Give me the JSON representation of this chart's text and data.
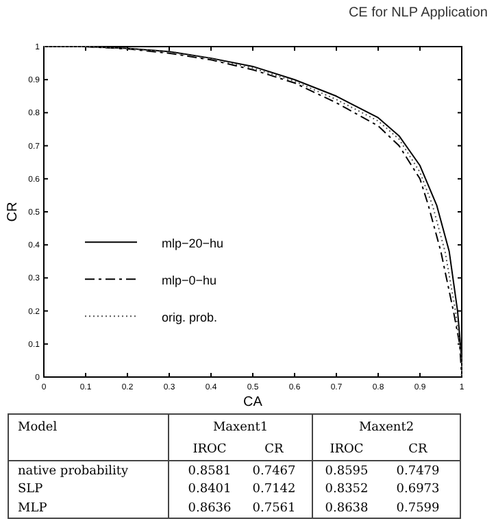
{
  "chart_data": [
    {
      "type": "line",
      "annotations": [
        "CE for NLP Application"
      ],
      "xlabel": "CA",
      "ylabel": "CR",
      "xlim": [
        0,
        1
      ],
      "ylim": [
        0,
        1
      ],
      "xticks": [
        0,
        0.1,
        0.2,
        0.3,
        0.4,
        0.5,
        0.6,
        0.7,
        0.8,
        0.9,
        1
      ],
      "yticks": [
        0,
        0.1,
        0.2,
        0.3,
        0.4,
        0.5,
        0.6,
        0.7,
        0.8,
        0.9,
        1
      ],
      "grid": false,
      "legend": "bottom left",
      "series": [
        {
          "name": "mlp−20−hu",
          "color": "#000000",
          "line_style": "solid",
          "x": [
            0,
            0.1,
            0.2,
            0.3,
            0.4,
            0.5,
            0.6,
            0.7,
            0.8,
            0.85,
            0.9,
            0.94,
            0.97,
            0.99,
            1,
            1
          ],
          "values": [
            1,
            1,
            0.995,
            0.985,
            0.965,
            0.94,
            0.9,
            0.85,
            0.785,
            0.73,
            0.64,
            0.52,
            0.38,
            0.2,
            0.05,
            0
          ]
        },
        {
          "name": "mlp−0−hu",
          "color": "#000000",
          "line_style": "dashed",
          "x": [
            0,
            0.1,
            0.2,
            0.3,
            0.4,
            0.5,
            0.6,
            0.7,
            0.8,
            0.85,
            0.9,
            0.92,
            0.95,
            0.98,
            0.995,
            1
          ],
          "values": [
            1,
            1,
            0.993,
            0.98,
            0.96,
            0.93,
            0.89,
            0.83,
            0.76,
            0.7,
            0.6,
            0.52,
            0.38,
            0.2,
            0.1,
            0
          ]
        },
        {
          "name": "orig. prob.",
          "color": "#555555",
          "line_style": "dotted",
          "x": [
            0,
            0.1,
            0.2,
            0.3,
            0.4,
            0.5,
            0.6,
            0.7,
            0.8,
            0.85,
            0.9,
            0.93,
            0.96,
            0.985,
            1,
            1
          ],
          "values": [
            1,
            1,
            0.994,
            0.983,
            0.963,
            0.935,
            0.895,
            0.84,
            0.775,
            0.72,
            0.62,
            0.52,
            0.38,
            0.2,
            0.05,
            0
          ]
        }
      ]
    },
    {
      "type": "other",
      "legend_title": "Model",
      "annotations": [
        "Maxent1",
        "Maxent2"
      ],
      "categories": [
        "IROC",
        "CR",
        "IROC",
        "CR"
      ],
      "y_categories": [
        "native probability",
        "SLP",
        "MLP"
      ],
      "cell_labels": [
        [
          "0.8581",
          "0.7467",
          "0.8595",
          "0.7479"
        ],
        [
          "0.8401",
          "0.7142",
          "0.8352",
          "0.6973"
        ],
        [
          "0.8636",
          "0.7561",
          "0.8638",
          "0.7599"
        ]
      ]
    }
  ]
}
